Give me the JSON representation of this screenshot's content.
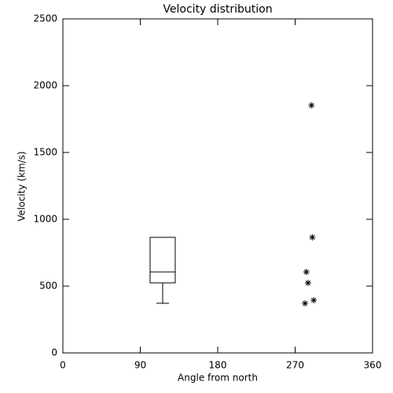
{
  "chart_data": {
    "type": "box",
    "title": "Velocity distribution",
    "x_label": "Angle from north",
    "y_label": "Velocity (km/s)",
    "xlim": [
      0,
      360
    ],
    "xticks": [
      0,
      90,
      180,
      270,
      360
    ],
    "ylim": [
      0,
      2500
    ],
    "yticks": [
      0,
      500,
      1000,
      1500,
      2000,
      2500
    ],
    "color": "#000000",
    "box": {
      "x": 116,
      "q1": 524,
      "median": 606,
      "q3": 865,
      "whisker_low": 371
    },
    "outliers": {
      "x": [
        289,
        290,
        283,
        285,
        281.5,
        291.6
      ],
      "values": [
        1853,
        865,
        606,
        524,
        371,
        394
      ]
    }
  }
}
